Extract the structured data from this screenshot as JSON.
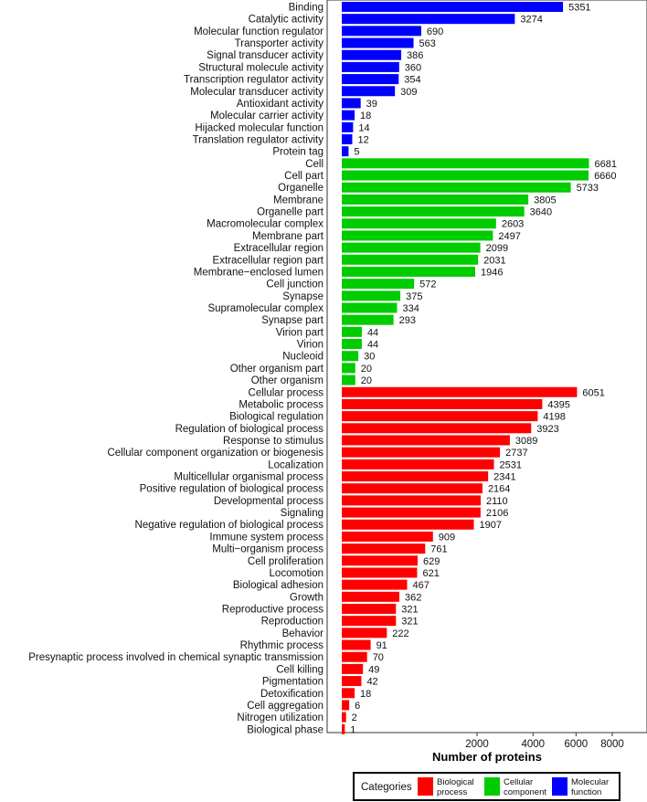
{
  "chart_data": {
    "type": "bar",
    "orientation": "horizontal",
    "xlabel": "Number of proteins",
    "ylabel": "",
    "x_scale": "sqrt",
    "xlim": [
      0,
      8800
    ],
    "x_ticks": [
      2000,
      4000,
      6000,
      8000
    ],
    "x_tick_labels": [
      "2000",
      "4000",
      "6000",
      "8000"
    ],
    "legend": {
      "title": "Categories",
      "placement": "bottom",
      "entries": [
        {
          "key": "bp",
          "label_lines": [
            "Biological",
            "process"
          ],
          "color": "#ff0000"
        },
        {
          "key": "cc",
          "label_lines": [
            "Cellular",
            "component"
          ],
          "color": "#00cc00"
        },
        {
          "key": "mf",
          "label_lines": [
            "Molecular",
            "function"
          ],
          "color": "#0000ff"
        }
      ]
    },
    "bars": [
      {
        "label": "Binding",
        "value": 5351,
        "category": "mf"
      },
      {
        "label": "Catalytic activity",
        "value": 3274,
        "category": "mf"
      },
      {
        "label": "Molecular function regulator",
        "value": 690,
        "category": "mf"
      },
      {
        "label": "Transporter activity",
        "value": 563,
        "category": "mf"
      },
      {
        "label": "Signal transducer activity",
        "value": 386,
        "category": "mf"
      },
      {
        "label": "Structural molecule activity",
        "value": 360,
        "category": "mf"
      },
      {
        "label": "Transcription regulator activity",
        "value": 354,
        "category": "mf"
      },
      {
        "label": "Molecular transducer activity",
        "value": 309,
        "category": "mf"
      },
      {
        "label": "Antioxidant activity",
        "value": 39,
        "category": "mf"
      },
      {
        "label": "Molecular carrier activity",
        "value": 18,
        "category": "mf"
      },
      {
        "label": "Hijacked molecular function",
        "value": 14,
        "category": "mf"
      },
      {
        "label": "Translation regulator activity",
        "value": 12,
        "category": "mf"
      },
      {
        "label": "Protein tag",
        "value": 5,
        "category": "mf"
      },
      {
        "label": "Cell",
        "value": 6681,
        "category": "cc"
      },
      {
        "label": "Cell part",
        "value": 6660,
        "category": "cc"
      },
      {
        "label": "Organelle",
        "value": 5733,
        "category": "cc"
      },
      {
        "label": "Membrane",
        "value": 3805,
        "category": "cc"
      },
      {
        "label": "Organelle part",
        "value": 3640,
        "category": "cc"
      },
      {
        "label": "Macromolecular complex",
        "value": 2603,
        "category": "cc"
      },
      {
        "label": "Membrane part",
        "value": 2497,
        "category": "cc"
      },
      {
        "label": "Extracellular region",
        "value": 2099,
        "category": "cc"
      },
      {
        "label": "Extracellular region part",
        "value": 2031,
        "category": "cc"
      },
      {
        "label": "Membrane−enclosed lumen",
        "value": 1946,
        "category": "cc"
      },
      {
        "label": "Cell junction",
        "value": 572,
        "category": "cc"
      },
      {
        "label": "Synapse",
        "value": 375,
        "category": "cc"
      },
      {
        "label": "Supramolecular complex",
        "value": 334,
        "category": "cc"
      },
      {
        "label": "Synapse part",
        "value": 293,
        "category": "cc"
      },
      {
        "label": "Virion part",
        "value": 44,
        "category": "cc"
      },
      {
        "label": "Virion",
        "value": 44,
        "category": "cc"
      },
      {
        "label": "Nucleoid",
        "value": 30,
        "category": "cc"
      },
      {
        "label": "Other organism part",
        "value": 20,
        "category": "cc"
      },
      {
        "label": "Other organism",
        "value": 20,
        "category": "cc"
      },
      {
        "label": "Cellular process",
        "value": 6051,
        "category": "bp"
      },
      {
        "label": "Metabolic process",
        "value": 4395,
        "category": "bp"
      },
      {
        "label": "Biological regulation",
        "value": 4198,
        "category": "bp"
      },
      {
        "label": "Regulation of biological process",
        "value": 3923,
        "category": "bp"
      },
      {
        "label": "Response to stimulus",
        "value": 3089,
        "category": "bp"
      },
      {
        "label": "Cellular component organization or biogenesis",
        "value": 2737,
        "category": "bp"
      },
      {
        "label": "Localization",
        "value": 2531,
        "category": "bp"
      },
      {
        "label": "Multicellular organismal process",
        "value": 2341,
        "category": "bp"
      },
      {
        "label": "Positive regulation of biological process",
        "value": 2164,
        "category": "bp"
      },
      {
        "label": "Developmental process",
        "value": 2110,
        "category": "bp"
      },
      {
        "label": "Signaling",
        "value": 2106,
        "category": "bp"
      },
      {
        "label": "Negative regulation of biological process",
        "value": 1907,
        "category": "bp"
      },
      {
        "label": "Immune system process",
        "value": 909,
        "category": "bp"
      },
      {
        "label": "Multi−organism process",
        "value": 761,
        "category": "bp"
      },
      {
        "label": "Cell proliferation",
        "value": 629,
        "category": "bp"
      },
      {
        "label": "Locomotion",
        "value": 621,
        "category": "bp"
      },
      {
        "label": "Biological adhesion",
        "value": 467,
        "category": "bp"
      },
      {
        "label": "Growth",
        "value": 362,
        "category": "bp"
      },
      {
        "label": "Reproductive process",
        "value": 321,
        "category": "bp"
      },
      {
        "label": "Reproduction",
        "value": 321,
        "category": "bp"
      },
      {
        "label": "Behavior",
        "value": 222,
        "category": "bp"
      },
      {
        "label": "Rhythmic process",
        "value": 91,
        "category": "bp"
      },
      {
        "label": "Presynaptic process involved in chemical synaptic transmission",
        "value": 70,
        "category": "bp"
      },
      {
        "label": "Cell killing",
        "value": 49,
        "category": "bp"
      },
      {
        "label": "Pigmentation",
        "value": 42,
        "category": "bp"
      },
      {
        "label": "Detoxification",
        "value": 18,
        "category": "bp"
      },
      {
        "label": "Cell aggregation",
        "value": 6,
        "category": "bp"
      },
      {
        "label": "Nitrogen utilization",
        "value": 2,
        "category": "bp"
      },
      {
        "label": "Biological phase",
        "value": 1,
        "category": "bp"
      }
    ]
  }
}
